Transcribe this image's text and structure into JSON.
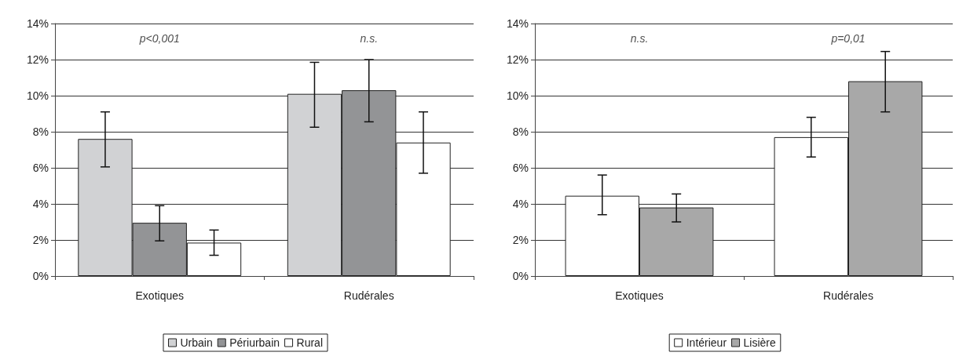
{
  "chart_data": [
    {
      "type": "bar",
      "categories": [
        "Exotiques",
        "Rudérales"
      ],
      "series": [
        {
          "name": "Urbain",
          "color": "#d1d2d4",
          "values": [
            7.6,
            10.1
          ],
          "errors": [
            [
              6.05,
              9.1
            ],
            [
              8.25,
              11.85
            ]
          ]
        },
        {
          "name": "Périurbain",
          "color": "#939496",
          "values": [
            2.95,
            10.3
          ],
          "errors": [
            [
              1.95,
              3.9
            ],
            [
              8.55,
              12.0
            ]
          ]
        },
        {
          "name": "Rural",
          "color": "#ffffff",
          "values": [
            1.85,
            7.4
          ],
          "errors": [
            [
              1.15,
              2.55
            ],
            [
              5.7,
              9.1
            ]
          ]
        }
      ],
      "ylim": [
        0,
        14
      ],
      "yticks": [
        {
          "value": 0,
          "label": "0%"
        },
        {
          "value": 2,
          "label": "2%"
        },
        {
          "value": 4,
          "label": "4%"
        },
        {
          "value": 6,
          "label": "6%"
        },
        {
          "value": 8,
          "label": "8%"
        },
        {
          "value": 10,
          "label": "10%"
        },
        {
          "value": 12,
          "label": "12%"
        },
        {
          "value": 14,
          "label": "14%"
        }
      ],
      "annotations": [
        "p<0,001",
        "n.s."
      ],
      "grid": "y",
      "legend": "bottom"
    },
    {
      "type": "bar",
      "categories": [
        "Exotiques",
        "Rudérales"
      ],
      "series": [
        {
          "name": "Intérieur",
          "color": "#ffffff",
          "values": [
            4.45,
            7.7
          ],
          "errors": [
            [
              3.4,
              5.6
            ],
            [
              6.6,
              8.8
            ]
          ]
        },
        {
          "name": "Lisière",
          "color": "#a8a8a8",
          "values": [
            3.8,
            10.8
          ],
          "errors": [
            [
              3.0,
              4.55
            ],
            [
              9.1,
              12.45
            ]
          ]
        }
      ],
      "ylim": [
        0,
        14
      ],
      "yticks": [
        {
          "value": 0,
          "label": "0%"
        },
        {
          "value": 2,
          "label": "2%"
        },
        {
          "value": 4,
          "label": "4%"
        },
        {
          "value": 6,
          "label": "6%"
        },
        {
          "value": 8,
          "label": "8%"
        },
        {
          "value": 10,
          "label": "10%"
        },
        {
          "value": 12,
          "label": "12%"
        },
        {
          "value": 14,
          "label": "14%"
        }
      ],
      "annotations": [
        "n.s.",
        "p=0,01"
      ],
      "grid": "y",
      "legend": "bottom"
    }
  ]
}
